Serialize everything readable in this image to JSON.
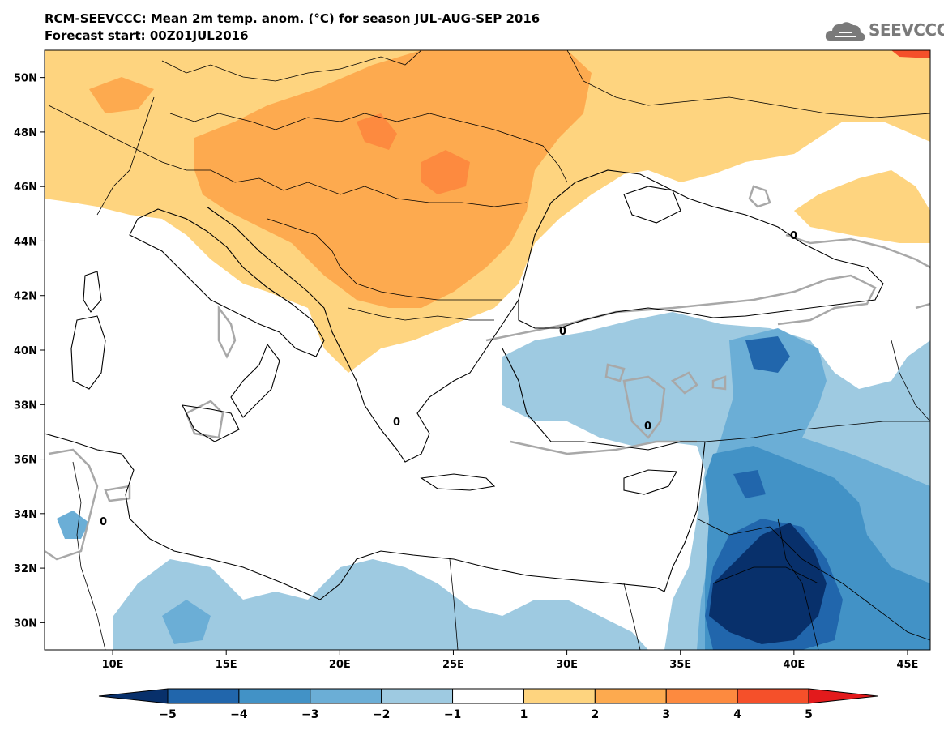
{
  "header": {
    "title_line1": "RCM-SEEVCCC: Mean 2m temp. anom. (°C) for season JUL-AUG-SEP 2016",
    "title_line2": "Forecast start: 00Z01JUL2016"
  },
  "logo": {
    "text": "SEEVCCC",
    "icon": "cloud-icon",
    "color": "#7a7a7a"
  },
  "map": {
    "lon_range": [
      7,
      46
    ],
    "lat_range": [
      29,
      51
    ],
    "lat_ticks": [
      "30N",
      "32N",
      "34N",
      "36N",
      "38N",
      "40N",
      "42N",
      "44N",
      "46N",
      "48N",
      "50N"
    ],
    "lat_values": [
      30,
      32,
      34,
      36,
      38,
      40,
      42,
      44,
      46,
      48,
      50
    ],
    "lon_ticks": [
      "10E",
      "15E",
      "20E",
      "25E",
      "30E",
      "35E",
      "40E",
      "45E"
    ],
    "lon_values": [
      10,
      15,
      20,
      25,
      30,
      35,
      40,
      45
    ],
    "contour_label": "0",
    "anomaly_regions": [
      {
        "desc_class": "+1 to +2",
        "color": "#fed47f"
      },
      {
        "desc_class": "+2 to +3",
        "color": "#fdaa4f"
      },
      {
        "desc_class": "+3 to +4",
        "color": "#fd8a3f"
      },
      {
        "desc_class": "-1 to -2",
        "color": "#9ecae1"
      },
      {
        "desc_class": "-2 to -3",
        "color": "#6baed6"
      },
      {
        "desc_class": "-3 to -4",
        "color": "#4292c6"
      },
      {
        "desc_class": "-4 to -5",
        "color": "#2166ac"
      },
      {
        "desc_class": "< -5",
        "color": "#08306b"
      }
    ]
  },
  "colorbar": {
    "labels": [
      "-5",
      "-4",
      "-3",
      "-2",
      "-1",
      "1",
      "2",
      "3",
      "4",
      "5"
    ],
    "colors": [
      "#08306b",
      "#2166ac",
      "#4292c6",
      "#6baed6",
      "#9ecae1",
      "#ffffff",
      "#fed47f",
      "#fdaa4f",
      "#fd8a3f",
      "#f5502a",
      "#e31a1c"
    ]
  }
}
